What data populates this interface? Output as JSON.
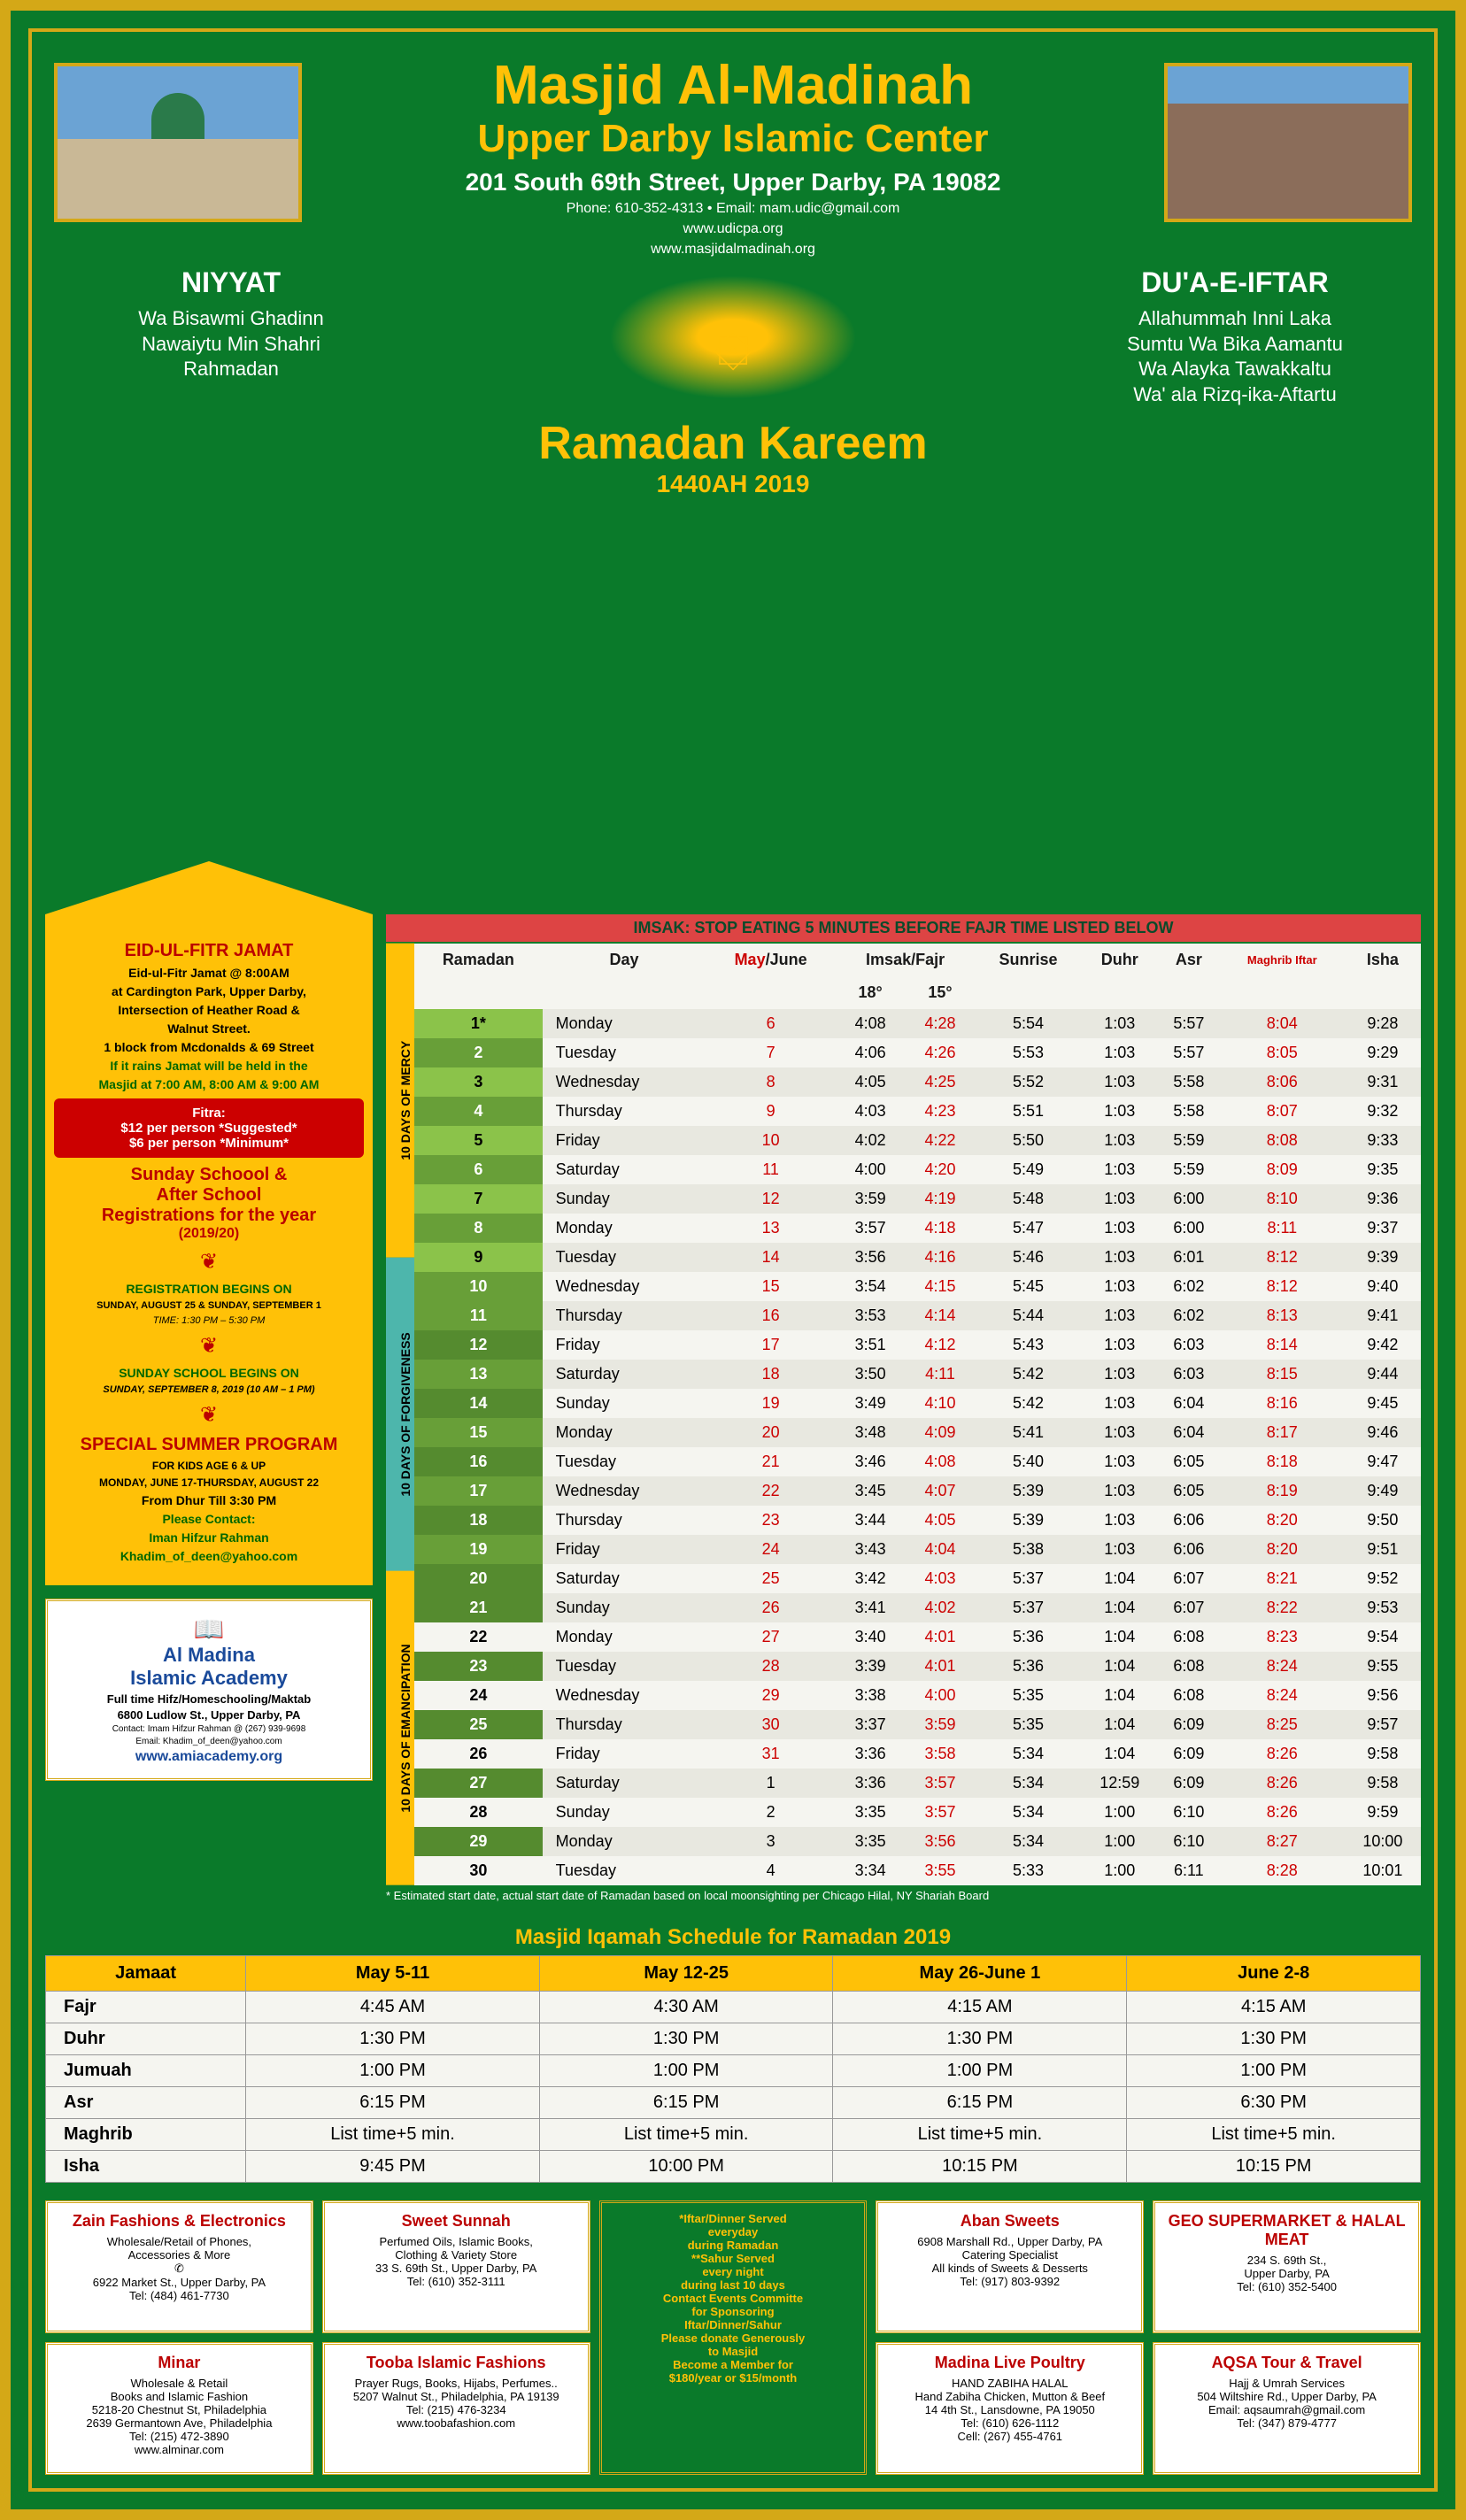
{
  "header": {
    "title_main": "Masjid Al-Madinah",
    "title_sub": "Upper Darby Islamic Center",
    "address": "201 South 69th Street, Upper Darby, PA 19082",
    "phone_email": "Phone: 610-352-4313 • Email: mam.udic@gmail.com",
    "web1": "www.udicpa.org",
    "web2": "www.masjidalmadinah.org",
    "ramadan_title": "Ramadan Kareem",
    "ramadan_year": "1440AH 2019"
  },
  "niyyat": {
    "title": "NIYYAT",
    "line1": "Wa Bisawmi Ghadinn",
    "line2": "Nawaiytu Min Shahri",
    "line3": "Rahmadan"
  },
  "dua": {
    "title": "DU'A-E-IFTAR",
    "line1": "Allahummah Inni Laka",
    "line2": "Sumtu Wa Bika Aamantu",
    "line3": "Wa Alayka Tawakkaltu",
    "line4": "Wa' ala Rizq-ika-Aftartu"
  },
  "sidebar": {
    "eid_title": "EID-UL-FITR JAMAT",
    "eid_time": "Eid-ul-Fitr Jamat @ 8:00AM",
    "eid_loc1": "at Cardington Park, Upper Darby,",
    "eid_loc2": "Intersection of Heather Road &",
    "eid_loc3": "Walnut Street.",
    "eid_loc4": "1 block from Mcdonalds & 69 Street",
    "eid_rain1": "If it rains Jamat will be held in the",
    "eid_rain2": "Masjid at 7:00 AM, 8:00 AM & 9:00 AM",
    "fitra_title": "Fitra:",
    "fitra_l1": "$12 per person *Suggested*",
    "fitra_l2": "$6 per person *Minimum*",
    "school_title1": "Sunday Schoool &",
    "school_title2": "After School",
    "school_title3": "Registrations for the year",
    "school_year": "(2019/20)",
    "reg_begins": "REGISTRATION BEGINS ON",
    "reg_dates": "SUNDAY, AUGUST 25 & SUNDAY, SEPTEMBER 1",
    "reg_time": "TIME: 1:30 PM – 5:30 PM",
    "sunday_begins": "SUNDAY SCHOOL BEGINS ON",
    "sunday_date": "SUNDAY, SEPTEMBER 8, 2019 (10 AM – 1 PM)",
    "summer_title": "SPECIAL SUMMER PROGRAM",
    "summer_age": "FOR KIDS AGE 6 & UP",
    "summer_dates": "MONDAY, JUNE 17-THURSDAY, AUGUST 22",
    "summer_time": "From Dhur Till 3:30 PM",
    "contact_lbl": "Please Contact:",
    "contact_name": "Iman Hifzur Rahman",
    "contact_email": "Khadim_of_deen@yahoo.com"
  },
  "academy": {
    "name1": "Al Madina",
    "name2": "Islamic Academy",
    "desc": "Full time Hifz/Homeschooling/Maktab",
    "addr": "6800 Ludlow St., Upper Darby, PA",
    "contact": "Contact: Imam Hifzur Rahman @ (267) 939-9698",
    "email": "Email: Khadim_of_deen@yahoo.com",
    "web": "www.amiacademy.org"
  },
  "imsak_note": "IMSAK: STOP EATING 5 MINUTES BEFORE FAJR TIME LISTED BELOW",
  "columns": {
    "ramadan": "Ramadan",
    "day": "Day",
    "may_june": "May/June",
    "imsak_fajr": "Imsak/Fajr",
    "sunrise": "Sunrise",
    "duhr": "Duhr",
    "asr": "Asr",
    "maghrib": "Maghrib Iftar",
    "isha": "Isha",
    "imsak_deg": "18°",
    "fajr_deg": "15°"
  },
  "sections": {
    "mercy": "10 DAYS OF MERCY",
    "forgive": "10 DAYS OF FORGIVENESS",
    "eman": "10 DAYS OF EMANCIPATION"
  },
  "rows": [
    {
      "r": "1*",
      "day": "Monday",
      "d": "6",
      "im": "4:08",
      "fa": "4:28",
      "sr": "5:54",
      "du": "1:03",
      "as": "5:57",
      "ma": "8:04",
      "is": "9:28",
      "may": true
    },
    {
      "r": "2",
      "day": "Tuesday",
      "d": "7",
      "im": "4:06",
      "fa": "4:26",
      "sr": "5:53",
      "du": "1:03",
      "as": "5:57",
      "ma": "8:05",
      "is": "9:29",
      "may": true
    },
    {
      "r": "3",
      "day": "Wednesday",
      "d": "8",
      "im": "4:05",
      "fa": "4:25",
      "sr": "5:52",
      "du": "1:03",
      "as": "5:58",
      "ma": "8:06",
      "is": "9:31",
      "may": true
    },
    {
      "r": "4",
      "day": "Thursday",
      "d": "9",
      "im": "4:03",
      "fa": "4:23",
      "sr": "5:51",
      "du": "1:03",
      "as": "5:58",
      "ma": "8:07",
      "is": "9:32",
      "may": true
    },
    {
      "r": "5",
      "day": "Friday",
      "d": "10",
      "im": "4:02",
      "fa": "4:22",
      "sr": "5:50",
      "du": "1:03",
      "as": "5:59",
      "ma": "8:08",
      "is": "9:33",
      "may": true
    },
    {
      "r": "6",
      "day": "Saturday",
      "d": "11",
      "im": "4:00",
      "fa": "4:20",
      "sr": "5:49",
      "du": "1:03",
      "as": "5:59",
      "ma": "8:09",
      "is": "9:35",
      "may": true
    },
    {
      "r": "7",
      "day": "Sunday",
      "d": "12",
      "im": "3:59",
      "fa": "4:19",
      "sr": "5:48",
      "du": "1:03",
      "as": "6:00",
      "ma": "8:10",
      "is": "9:36",
      "may": true
    },
    {
      "r": "8",
      "day": "Monday",
      "d": "13",
      "im": "3:57",
      "fa": "4:18",
      "sr": "5:47",
      "du": "1:03",
      "as": "6:00",
      "ma": "8:11",
      "is": "9:37",
      "may": true
    },
    {
      "r": "9",
      "day": "Tuesday",
      "d": "14",
      "im": "3:56",
      "fa": "4:16",
      "sr": "5:46",
      "du": "1:03",
      "as": "6:01",
      "ma": "8:12",
      "is": "9:39",
      "may": true
    },
    {
      "r": "10",
      "day": "Wednesday",
      "d": "15",
      "im": "3:54",
      "fa": "4:15",
      "sr": "5:45",
      "du": "1:03",
      "as": "6:02",
      "ma": "8:12",
      "is": "9:40",
      "may": true
    },
    {
      "r": "11",
      "day": "Thursday",
      "d": "16",
      "im": "3:53",
      "fa": "4:14",
      "sr": "5:44",
      "du": "1:03",
      "as": "6:02",
      "ma": "8:13",
      "is": "9:41",
      "may": true
    },
    {
      "r": "12",
      "day": "Friday",
      "d": "17",
      "im": "3:51",
      "fa": "4:12",
      "sr": "5:43",
      "du": "1:03",
      "as": "6:03",
      "ma": "8:14",
      "is": "9:42",
      "may": true
    },
    {
      "r": "13",
      "day": "Saturday",
      "d": "18",
      "im": "3:50",
      "fa": "4:11",
      "sr": "5:42",
      "du": "1:03",
      "as": "6:03",
      "ma": "8:15",
      "is": "9:44",
      "may": true
    },
    {
      "r": "14",
      "day": "Sunday",
      "d": "19",
      "im": "3:49",
      "fa": "4:10",
      "sr": "5:42",
      "du": "1:03",
      "as": "6:04",
      "ma": "8:16",
      "is": "9:45",
      "may": true
    },
    {
      "r": "15",
      "day": "Monday",
      "d": "20",
      "im": "3:48",
      "fa": "4:09",
      "sr": "5:41",
      "du": "1:03",
      "as": "6:04",
      "ma": "8:17",
      "is": "9:46",
      "may": true
    },
    {
      "r": "16",
      "day": "Tuesday",
      "d": "21",
      "im": "3:46",
      "fa": "4:08",
      "sr": "5:40",
      "du": "1:03",
      "as": "6:05",
      "ma": "8:18",
      "is": "9:47",
      "may": true
    },
    {
      "r": "17",
      "day": "Wednesday",
      "d": "22",
      "im": "3:45",
      "fa": "4:07",
      "sr": "5:39",
      "du": "1:03",
      "as": "6:05",
      "ma": "8:19",
      "is": "9:49",
      "may": true
    },
    {
      "r": "18",
      "day": "Thursday",
      "d": "23",
      "im": "3:44",
      "fa": "4:05",
      "sr": "5:39",
      "du": "1:03",
      "as": "6:06",
      "ma": "8:20",
      "is": "9:50",
      "may": true
    },
    {
      "r": "19",
      "day": "Friday",
      "d": "24",
      "im": "3:43",
      "fa": "4:04",
      "sr": "5:38",
      "du": "1:03",
      "as": "6:06",
      "ma": "8:20",
      "is": "9:51",
      "may": true
    },
    {
      "r": "20",
      "day": "Saturday",
      "d": "25",
      "im": "3:42",
      "fa": "4:03",
      "sr": "5:37",
      "du": "1:04",
      "as": "6:07",
      "ma": "8:21",
      "is": "9:52",
      "may": true
    },
    {
      "r": "21",
      "day": "Sunday",
      "d": "26",
      "im": "3:41",
      "fa": "4:02",
      "sr": "5:37",
      "du": "1:04",
      "as": "6:07",
      "ma": "8:22",
      "is": "9:53",
      "may": true
    },
    {
      "r": "22",
      "day": "Monday",
      "d": "27",
      "im": "3:40",
      "fa": "4:01",
      "sr": "5:36",
      "du": "1:04",
      "as": "6:08",
      "ma": "8:23",
      "is": "9:54",
      "may": true
    },
    {
      "r": "23",
      "day": "Tuesday",
      "d": "28",
      "im": "3:39",
      "fa": "4:01",
      "sr": "5:36",
      "du": "1:04",
      "as": "6:08",
      "ma": "8:24",
      "is": "9:55",
      "may": true
    },
    {
      "r": "24",
      "day": "Wednesday",
      "d": "29",
      "im": "3:38",
      "fa": "4:00",
      "sr": "5:35",
      "du": "1:04",
      "as": "6:08",
      "ma": "8:24",
      "is": "9:56",
      "may": true
    },
    {
      "r": "25",
      "day": "Thursday",
      "d": "30",
      "im": "3:37",
      "fa": "3:59",
      "sr": "5:35",
      "du": "1:04",
      "as": "6:09",
      "ma": "8:25",
      "is": "9:57",
      "may": true
    },
    {
      "r": "26",
      "day": "Friday",
      "d": "31",
      "im": "3:36",
      "fa": "3:58",
      "sr": "5:34",
      "du": "1:04",
      "as": "6:09",
      "ma": "8:26",
      "is": "9:58",
      "may": true
    },
    {
      "r": "27",
      "day": "Saturday",
      "d": "1",
      "im": "3:36",
      "fa": "3:57",
      "sr": "5:34",
      "du": "12:59",
      "as": "6:09",
      "ma": "8:26",
      "is": "9:58",
      "may": false
    },
    {
      "r": "28",
      "day": "Sunday",
      "d": "2",
      "im": "3:35",
      "fa": "3:57",
      "sr": "5:34",
      "du": "1:00",
      "as": "6:10",
      "ma": "8:26",
      "is": "9:59",
      "may": false
    },
    {
      "r": "29",
      "day": "Monday",
      "d": "3",
      "im": "3:35",
      "fa": "3:56",
      "sr": "5:34",
      "du": "1:00",
      "as": "6:10",
      "ma": "8:27",
      "is": "10:00",
      "may": false
    },
    {
      "r": "30",
      "day": "Tuesday",
      "d": "4",
      "im": "3:34",
      "fa": "3:55",
      "sr": "5:33",
      "du": "1:00",
      "as": "6:11",
      "ma": "8:28",
      "is": "10:01",
      "may": false
    }
  ],
  "footnote": "* Estimated start date, actual start date of Ramadan based on local moonsighting per Chicago Hilal, NY Shariah Board",
  "iqamah": {
    "title": "Masjid Iqamah Schedule for Ramadan 2019",
    "headers": [
      "Jamaat",
      "May 5-11",
      "May 12-25",
      "May 26-June 1",
      "June 2-8"
    ],
    "rows": [
      [
        "Fajr",
        "4:45 AM",
        "4:30 AM",
        "4:15 AM",
        "4:15 AM"
      ],
      [
        "Duhr",
        "1:30 PM",
        "1:30 PM",
        "1:30 PM",
        "1:30 PM"
      ],
      [
        "Jumuah",
        "1:00 PM",
        "1:00 PM",
        "1:00 PM",
        "1:00 PM"
      ],
      [
        "Asr",
        "6:15 PM",
        "6:15 PM",
        "6:15 PM",
        "6:30 PM"
      ],
      [
        "Maghrib",
        "List time+5 min.",
        "List time+5 min.",
        "List time+5 min.",
        "List time+5 min."
      ],
      [
        "Isha",
        "9:45 PM",
        "10:00 PM",
        "10:15 PM",
        "10:15 PM"
      ]
    ]
  },
  "ads": [
    {
      "title": "Zain Fashions & Electronics",
      "lines": [
        "Wholesale/Retail of Phones,",
        "Accessories & More",
        "✆",
        "6922 Market St., Upper Darby, PA",
        "Tel: (484) 461-7730"
      ]
    },
    {
      "title": "Sweet Sunnah",
      "lines": [
        "Perfumed Oils, Islamic Books,",
        "Clothing & Variety Store",
        "33 S. 69th St., Upper Darby, PA",
        "Tel: (610) 352-3111"
      ]
    },
    {
      "center": true,
      "lines": [
        "*Iftar/Dinner Served",
        "everyday",
        "during Ramadan",
        "",
        "**Sahur Served",
        "every night",
        "during last 10 days",
        "",
        "Contact Events Committe",
        "for Sponsoring",
        "Iftar/Dinner/Sahur",
        "",
        "Please donate Generously",
        "to Masjid",
        "Become a Member for",
        "$180/year or $15/month"
      ]
    },
    {
      "title": "Aban Sweets",
      "lines": [
        "6908 Marshall Rd., Upper Darby, PA",
        "Catering Specialist",
        "All kinds of Sweets & Desserts",
        "Tel: (917) 803-9392"
      ]
    },
    {
      "title": "GEO SUPERMARKET & HALAL MEAT",
      "lines": [
        "234 S. 69th St.,",
        "Upper Darby, PA",
        "Tel: (610) 352-5400"
      ]
    },
    {
      "title": "Minar",
      "lines": [
        "Wholesale & Retail",
        "Books and Islamic Fashion",
        "5218-20 Chestnut St, Philadelphia",
        "2639 Germantown Ave, Philadelphia",
        "Tel: (215) 472-3890",
        "www.alminar.com"
      ]
    },
    {
      "title": "Tooba Islamic Fashions",
      "lines": [
        "Prayer Rugs, Books, Hijabs, Perfumes..",
        "5207 Walnut St., Philadelphia, PA 19139",
        "Tel: (215) 476-3234",
        "www.toobafashion.com"
      ]
    },
    {
      "title": "Madina Live Poultry",
      "lines": [
        "HAND ZABIHA HALAL",
        "Hand Zabiha Chicken, Mutton & Beef",
        "14 4th St., Lansdowne, PA 19050",
        "Tel: (610) 626-1112",
        "Cell: (267) 455-4761"
      ]
    },
    {
      "title": "AQSA Tour & Travel",
      "lines": [
        "Hajj & Umrah Services",
        "504 Wiltshire Rd., Upper Darby, PA",
        "Email: aqsaumrah@gmail.com",
        "Tel: (347) 879-4777"
      ]
    }
  ]
}
